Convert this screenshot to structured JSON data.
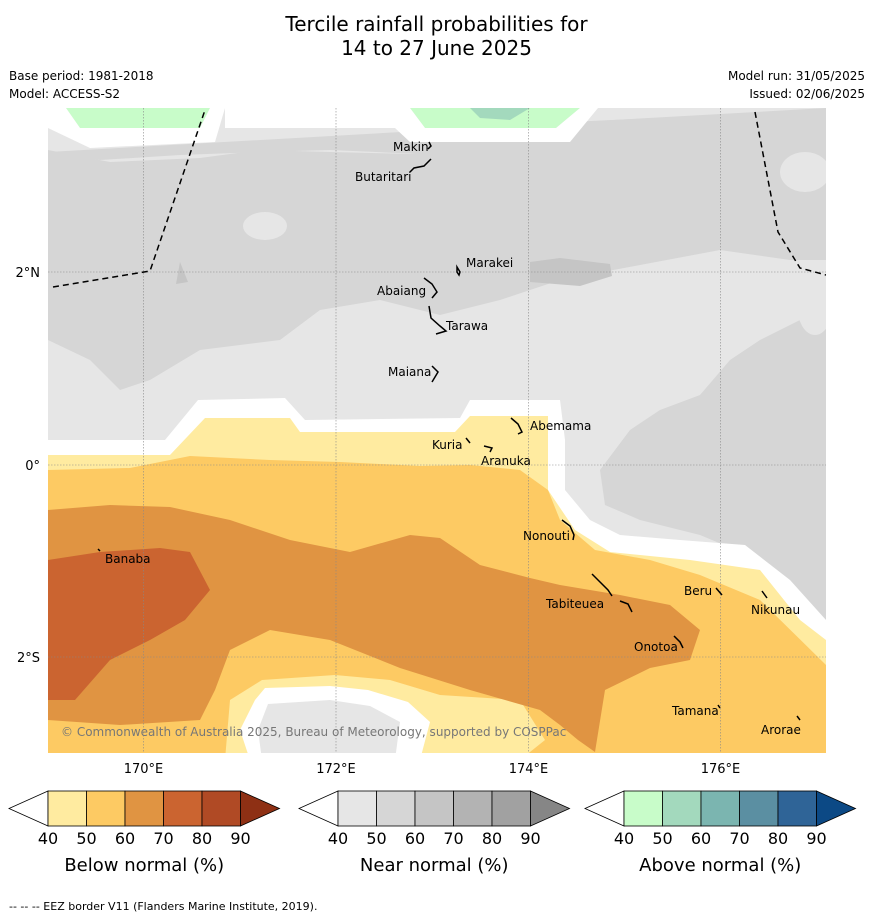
{
  "title_line1": "Tercile rainfall probabilities for",
  "title_line2": "14 to 27 June 2025",
  "meta": {
    "base_period": "Base period: 1981-2018",
    "model": "Model: ACCESS-S2",
    "model_run": "Model run: 31/05/2025",
    "issued": "Issued: 02/06/2025"
  },
  "axes": {
    "lon_ticks": [
      "170°E",
      "172°E",
      "174°E",
      "176°E"
    ],
    "lat_ticks": [
      "2°N",
      "0°",
      "2°S"
    ]
  },
  "places": [
    {
      "name": "Makin",
      "lon": 172.95,
      "lat": 3.2
    },
    {
      "name": "Butaritari",
      "lon": 172.85,
      "lat": 3.05
    },
    {
      "name": "Marakei",
      "lon": 173.3,
      "lat": 2.0
    },
    {
      "name": "Abaiang",
      "lon": 172.95,
      "lat": 1.85
    },
    {
      "name": "Tarawa",
      "lon": 173.05,
      "lat": 1.5
    },
    {
      "name": "Maiana",
      "lon": 173.0,
      "lat": 0.95
    },
    {
      "name": "Abemama",
      "lon": 173.85,
      "lat": 0.4
    },
    {
      "name": "Kuria",
      "lon": 173.4,
      "lat": 0.22
    },
    {
      "name": "Aranuka",
      "lon": 173.6,
      "lat": 0.15
    },
    {
      "name": "Nonouti",
      "lon": 174.4,
      "lat": -0.7
    },
    {
      "name": "Banaba",
      "lon": 169.55,
      "lat": -0.85
    },
    {
      "name": "Tabiteuea",
      "lon": 174.85,
      "lat": -1.35
    },
    {
      "name": "Beru",
      "lon": 175.98,
      "lat": -1.35
    },
    {
      "name": "Nikunau",
      "lon": 176.45,
      "lat": -1.35
    },
    {
      "name": "Onotoa",
      "lon": 175.55,
      "lat": -1.8
    },
    {
      "name": "Tamana",
      "lon": 175.98,
      "lat": -2.5
    },
    {
      "name": "Arorae",
      "lon": 176.8,
      "lat": -2.65
    }
  ],
  "copyright": "© Commonwealth of Australia 2025, Bureau of Meteorology, supported by COSPPac",
  "colorbars": [
    {
      "label": "Below normal (%)",
      "ticks": [
        "40",
        "50",
        "60",
        "70",
        "80",
        "90"
      ],
      "colors": [
        "#ffffff",
        "#ffeba0",
        "#fdca63",
        "#e09442",
        "#cb6430",
        "#b04a25",
        "#8e3014"
      ]
    },
    {
      "label": "Near normal (%)",
      "ticks": [
        "40",
        "50",
        "60",
        "70",
        "80",
        "90"
      ],
      "colors": [
        "#ffffff",
        "#e6e6e6",
        "#d6d6d6",
        "#c5c5c5",
        "#b3b3b3",
        "#a1a1a1",
        "#868686"
      ]
    },
    {
      "label": "Above normal (%)",
      "ticks": [
        "40",
        "50",
        "60",
        "70",
        "80",
        "90"
      ],
      "colors": [
        "#ffffff",
        "#c8fcc9",
        "#a3d9bd",
        "#7bb5b0",
        "#5b8fa2",
        "#2f6497",
        "#0c4985"
      ]
    }
  ],
  "footer": "--  --  -- EEZ border V11 (Flanders Marine Institute, 2019)."
}
